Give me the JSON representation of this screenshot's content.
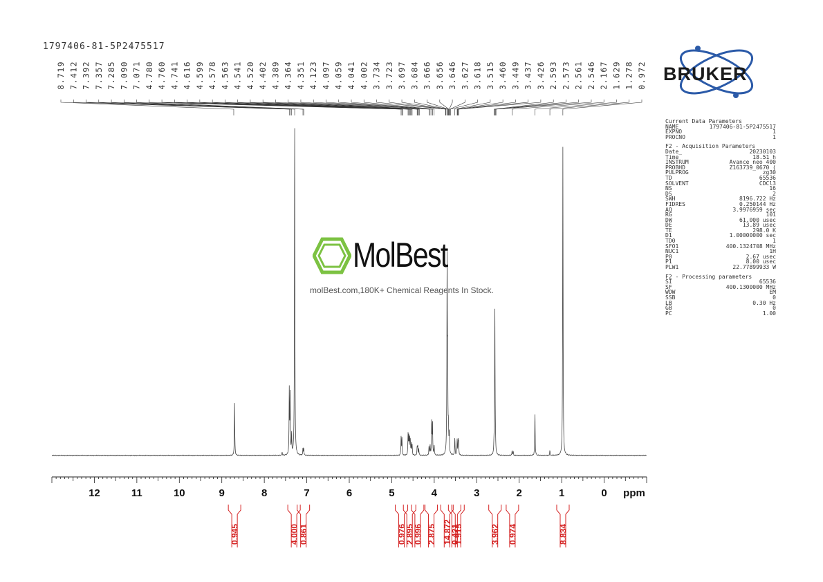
{
  "sample_id": "1797406-81-5P2475517",
  "brand": {
    "bruker": "BRUKER",
    "watermark_name": "MolBest",
    "watermark_tagline": "molBest.com,180K+ Chemical Reagents In Stock.",
    "accent_red": "#d42020",
    "bruker_blue": "#2b5aa8"
  },
  "parameters": {
    "current": {
      "title": "Current Data Parameters",
      "rows": [
        [
          "NAME",
          "1797406-81-5P2475517"
        ],
        [
          "EXPNO",
          "1"
        ],
        [
          "PROCNO",
          "1"
        ]
      ]
    },
    "acquisition": {
      "title": "F2 - Acquisition Parameters",
      "rows": [
        [
          "Date_",
          "20230103"
        ],
        [
          "Time",
          "18.51 h"
        ],
        [
          "INSTRUM",
          "Avance neo 400"
        ],
        [
          "PROBHD",
          "Z163739_0670 ("
        ],
        [
          "PULPROG",
          "zg30"
        ],
        [
          "TD",
          "65536"
        ],
        [
          "SOLVENT",
          "CDCl3"
        ],
        [
          "NS",
          "16"
        ],
        [
          "DS",
          "2"
        ],
        [
          "SWH",
          "8196.722 Hz"
        ],
        [
          "FIDRES",
          "0.250144 Hz"
        ],
        [
          "AQ",
          "3.9976959 sec"
        ],
        [
          "RG",
          "101"
        ],
        [
          "DW",
          "61.000 usec"
        ],
        [
          "DE",
          "13.89 usec"
        ],
        [
          "TE",
          "298.0 K"
        ],
        [
          "D1",
          "1.00000000 sec"
        ],
        [
          "TD0",
          "1"
        ],
        [
          "SFO1",
          "400.1324708 MHz"
        ],
        [
          "NUC1",
          "1H"
        ],
        [
          "P0",
          "2.67 usec"
        ],
        [
          "P1",
          "8.00 usec"
        ],
        [
          "PLW1",
          "22.77899933 W"
        ]
      ]
    },
    "processing": {
      "title": "F2 - Processing parameters",
      "rows": [
        [
          "SI",
          "65536"
        ],
        [
          "SF",
          "400.1300000 MHz"
        ],
        [
          "WDW",
          "EM"
        ],
        [
          "SSB",
          "0"
        ],
        [
          "LB",
          "0.30 Hz"
        ],
        [
          "GB",
          "0"
        ],
        [
          "PC",
          "1.00"
        ]
      ]
    }
  },
  "chart_data": {
    "type": "line",
    "title": "",
    "xlabel": "ppm",
    "ylabel": "",
    "xlim": [
      13.0,
      -1.0
    ],
    "x_reversed": true,
    "x_ticks": [
      12,
      11,
      10,
      9,
      8,
      7,
      6,
      5,
      4,
      3,
      2,
      1,
      0
    ],
    "peak_labels": [
      "8.719",
      "7.412",
      "7.392",
      "7.357",
      "7.285",
      "7.090",
      "7.071",
      "4.780",
      "4.760",
      "4.741",
      "4.616",
      "4.599",
      "4.578",
      "4.563",
      "4.541",
      "4.520",
      "4.402",
      "4.389",
      "4.364",
      "4.351",
      "4.123",
      "4.097",
      "4.059",
      "4.041",
      "4.002",
      "3.734",
      "3.723",
      "3.697",
      "3.684",
      "3.666",
      "3.656",
      "3.646",
      "3.627",
      "3.618",
      "3.515",
      "3.460",
      "3.449",
      "3.437",
      "3.426",
      "2.593",
      "2.573",
      "2.561",
      "2.546",
      "2.167",
      "1.629",
      "1.278",
      "0.972"
    ],
    "peaks": [
      {
        "ppm": 8.7,
        "height": 0.155
      },
      {
        "ppm": 7.412,
        "height": 0.19
      },
      {
        "ppm": 7.392,
        "height": 0.175
      },
      {
        "ppm": 7.357,
        "height": 0.06
      },
      {
        "ppm": 7.285,
        "height": 1.0
      },
      {
        "ppm": 7.09,
        "height": 0.02
      },
      {
        "ppm": 7.071,
        "height": 0.02
      },
      {
        "ppm": 7.58,
        "height": 0.01
      },
      {
        "ppm": 4.78,
        "height": 0.055
      },
      {
        "ppm": 4.76,
        "height": 0.05
      },
      {
        "ppm": 4.616,
        "height": 0.06
      },
      {
        "ppm": 4.599,
        "height": 0.055
      },
      {
        "ppm": 4.578,
        "height": 0.05
      },
      {
        "ppm": 4.563,
        "height": 0.04
      },
      {
        "ppm": 4.541,
        "height": 0.035
      },
      {
        "ppm": 4.52,
        "height": 0.03
      },
      {
        "ppm": 4.402,
        "height": 0.025
      },
      {
        "ppm": 4.389,
        "height": 0.025
      },
      {
        "ppm": 4.364,
        "height": 0.02
      },
      {
        "ppm": 4.123,
        "height": 0.025
      },
      {
        "ppm": 4.097,
        "height": 0.03
      },
      {
        "ppm": 4.059,
        "height": 0.1
      },
      {
        "ppm": 4.041,
        "height": 0.095
      },
      {
        "ppm": 4.002,
        "height": 0.03
      },
      {
        "ppm": 3.697,
        "height": 0.57
      },
      {
        "ppm": 3.684,
        "height": 0.25
      },
      {
        "ppm": 3.666,
        "height": 0.07
      },
      {
        "ppm": 3.646,
        "height": 0.06
      },
      {
        "ppm": 3.515,
        "height": 0.05
      },
      {
        "ppm": 3.46,
        "height": 0.045
      },
      {
        "ppm": 3.437,
        "height": 0.04
      },
      {
        "ppm": 3.426,
        "height": 0.035
      },
      {
        "ppm": 2.593,
        "height": 0.025
      },
      {
        "ppm": 2.573,
        "height": 0.44
      },
      {
        "ppm": 2.561,
        "height": 0.03
      },
      {
        "ppm": 2.167,
        "height": 0.015
      },
      {
        "ppm": 2.14,
        "height": 0.012
      },
      {
        "ppm": 1.629,
        "height": 0.125
      },
      {
        "ppm": 1.278,
        "height": 0.015
      },
      {
        "ppm": 0.972,
        "height": 0.92
      }
    ],
    "integrals": [
      {
        "ppm": 8.7,
        "value": "0.945"
      },
      {
        "ppm": 7.3,
        "value": "4.000"
      },
      {
        "ppm": 7.08,
        "value": "0.861"
      },
      {
        "ppm": 4.77,
        "value": "0.976"
      },
      {
        "ppm": 4.58,
        "value": "2.895"
      },
      {
        "ppm": 4.39,
        "value": "0.996"
      },
      {
        "ppm": 4.07,
        "value": "2.875"
      },
      {
        "ppm": 3.7,
        "value": "14.872"
      },
      {
        "ppm": 3.52,
        "value": "0.421"
      },
      {
        "ppm": 3.44,
        "value": "1.915"
      },
      {
        "ppm": 2.57,
        "value": "3.962"
      },
      {
        "ppm": 2.16,
        "value": "0.974"
      },
      {
        "ppm": 0.97,
        "value": "8.834"
      }
    ]
  }
}
